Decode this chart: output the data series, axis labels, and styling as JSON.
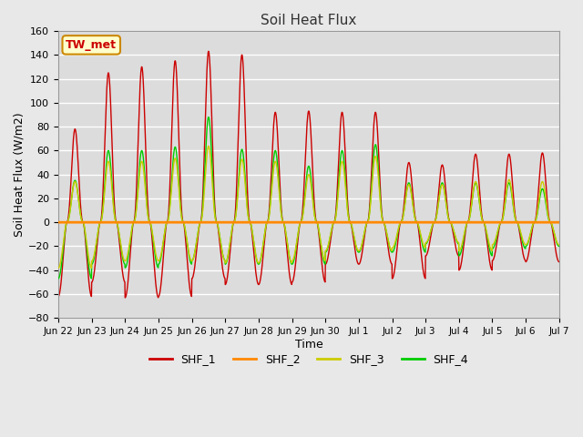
{
  "title": "Soil Heat Flux",
  "ylabel": "Soil Heat Flux (W/m2)",
  "xlabel": "Time",
  "ylim": [
    -80,
    160
  ],
  "yticks": [
    -80,
    -60,
    -40,
    -20,
    0,
    20,
    40,
    60,
    80,
    100,
    120,
    140,
    160
  ],
  "fig_bg_color": "#e8e8e8",
  "plot_bg_color": "#dcdcdc",
  "grid_color": "#ffffff",
  "annotation_text": "TW_met",
  "annotation_bg": "#ffffcc",
  "annotation_border": "#cc8800",
  "series_colors": {
    "SHF_1": "#cc0000",
    "SHF_2": "#ff8800",
    "SHF_3": "#cccc00",
    "SHF_4": "#00cc00"
  },
  "xtick_labels": [
    "Jun 22",
    "Jun 23",
    "Jun 24",
    "Jun 25",
    "Jun 26",
    "Jun 27",
    "Jun 28",
    "Jun 29",
    "Jun 30",
    "Jul 1",
    "Jul 2",
    "Jul 3",
    "Jul 4",
    "Jul 5",
    "Jul 6",
    "Jul 7"
  ],
  "n_days": 15,
  "points_per_day": 144,
  "shf1_peaks": [
    78,
    125,
    130,
    135,
    143,
    140,
    92,
    93,
    92,
    92,
    50,
    48,
    57,
    57,
    58
  ],
  "shf1_neg": [
    62,
    50,
    63,
    62,
    47,
    52,
    52,
    50,
    35,
    35,
    47,
    28,
    40,
    32,
    33
  ],
  "shf3_peaks": [
    40,
    60,
    60,
    63,
    75,
    62,
    60,
    47,
    60,
    65,
    37,
    37,
    40,
    42,
    40
  ],
  "shf3_neg": [
    45,
    38,
    38,
    38,
    38,
    40,
    40,
    38,
    28,
    28,
    25,
    20,
    28,
    22,
    22
  ],
  "shf4_peaks": [
    35,
    60,
    60,
    63,
    88,
    61,
    60,
    47,
    60,
    65,
    33,
    33,
    33,
    33,
    28
  ],
  "shf4_neg": [
    47,
    35,
    38,
    35,
    32,
    35,
    35,
    35,
    25,
    25,
    25,
    18,
    28,
    22,
    20
  ],
  "day_start": 0.25,
  "day_end": 0.75,
  "peak_sharpness": 2.5
}
